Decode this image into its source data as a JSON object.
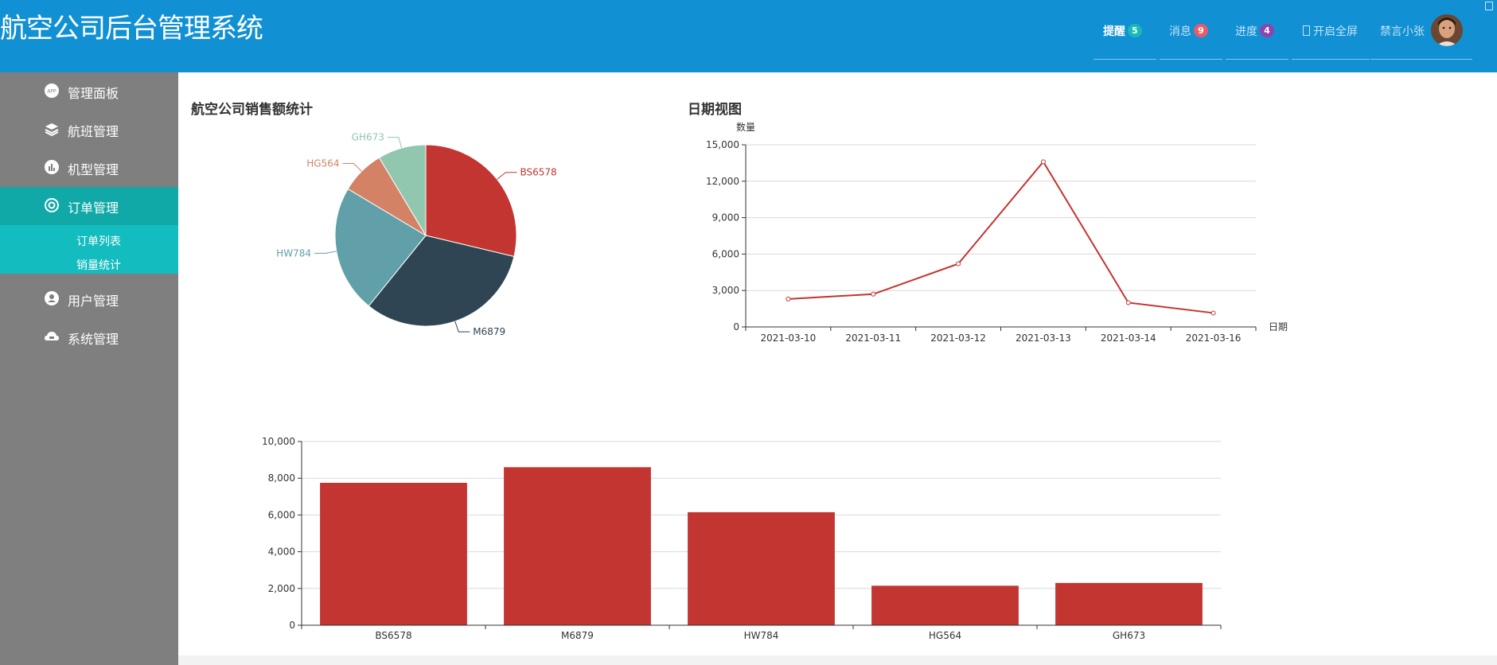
{
  "header": {
    "title": "航空公司后台管理系统",
    "nav": [
      {
        "label": "提醒",
        "badge": "5",
        "badge_color": "#19b9b6",
        "active": true
      },
      {
        "label": "消息",
        "badge": "9",
        "badge_color": "#e85c6b"
      },
      {
        "label": "进度",
        "badge": "4",
        "badge_color": "#8e44ad"
      },
      {
        "label": "开启全屏",
        "icon": "fullscreen-icon"
      }
    ],
    "user_name": "禁言小张"
  },
  "sidebar": {
    "items": [
      {
        "label": "管理面板",
        "icon": "app-icon"
      },
      {
        "label": "航班管理",
        "icon": "layers-icon"
      },
      {
        "label": "机型管理",
        "icon": "chart-icon"
      },
      {
        "label": "订单管理",
        "icon": "gear-icon",
        "active": true
      },
      {
        "label": "用户管理",
        "icon": "user-icon"
      },
      {
        "label": "系统管理",
        "icon": "cloud-icon"
      }
    ],
    "submenu": [
      {
        "label": "订单列表"
      },
      {
        "label": "销量统计"
      }
    ]
  },
  "charts": {
    "pie_title": "航空公司销售额统计",
    "line_title": "日期视图"
  },
  "chart_data": [
    {
      "type": "pie",
      "title": "航空公司销售额统计",
      "categories": [
        "BS6578",
        "M6879",
        "HW784",
        "HG564",
        "GH673"
      ],
      "values": [
        7700,
        8600,
        6100,
        2100,
        2300
      ],
      "colors": [
        "#c23531",
        "#2f4554",
        "#61a0a8",
        "#d48265",
        "#91c7ae"
      ]
    },
    {
      "type": "line",
      "title": "日期视图",
      "xlabel": "日期",
      "ylabel": "数量",
      "x": [
        "2021-03-10",
        "2021-03-11",
        "2021-03-12",
        "2021-03-13",
        "2021-03-14",
        "2021-03-16"
      ],
      "values": [
        2300,
        2700,
        5200,
        13600,
        2000,
        1150
      ],
      "ylim": [
        0,
        15000
      ],
      "yticks": [
        0,
        3000,
        6000,
        9000,
        12000,
        15000
      ],
      "color": "#c23531"
    },
    {
      "type": "bar",
      "categories": [
        "BS6578",
        "M6879",
        "HW784",
        "HG564",
        "GH673"
      ],
      "values": [
        7750,
        8600,
        6150,
        2150,
        2300
      ],
      "ylim": [
        0,
        10000
      ],
      "yticks": [
        0,
        2000,
        4000,
        6000,
        8000,
        10000
      ],
      "color": "#c23531"
    }
  ]
}
